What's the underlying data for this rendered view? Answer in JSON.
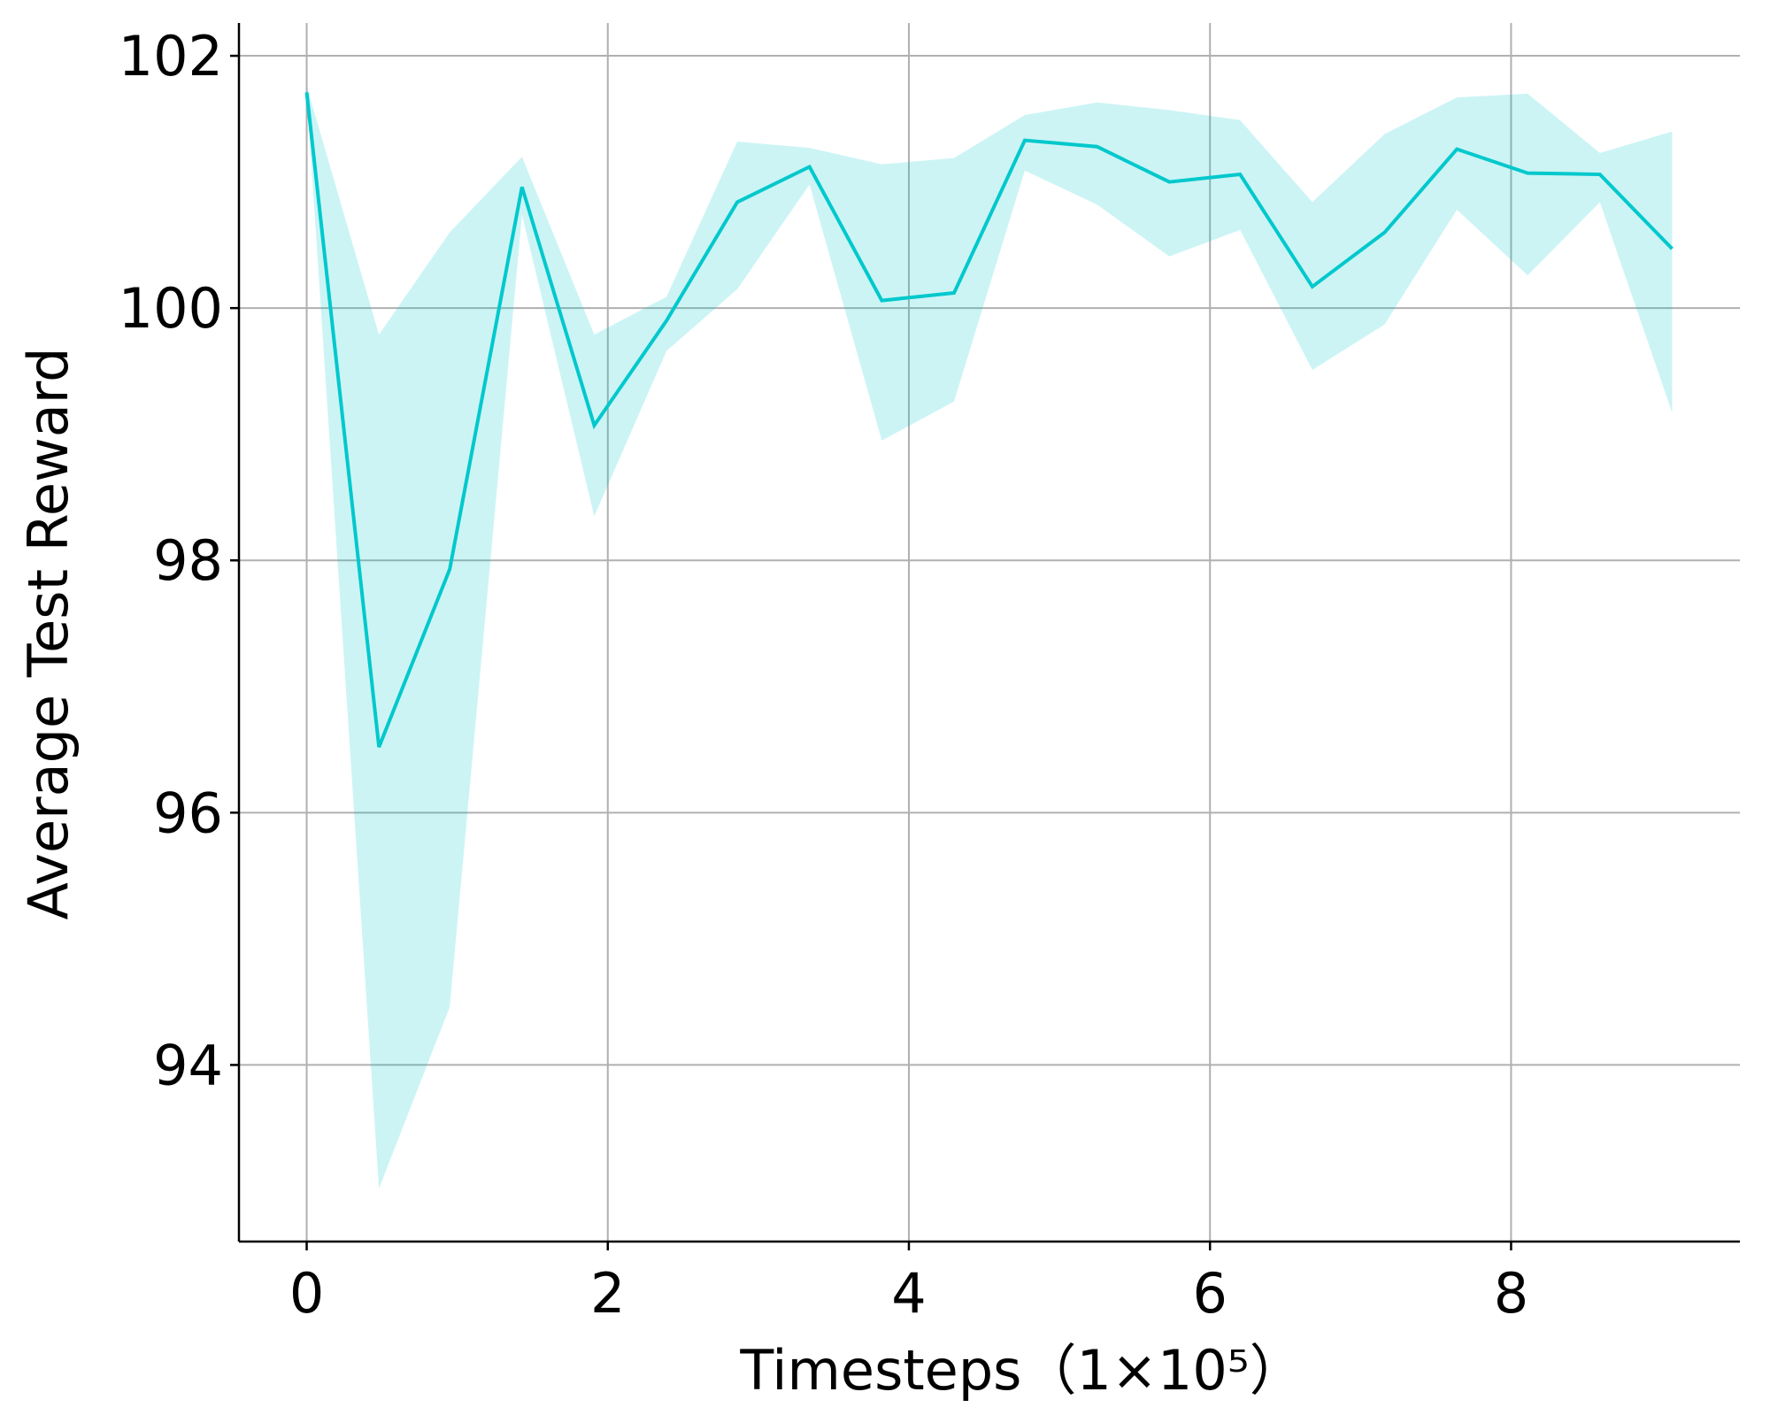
{
  "chart_data": {
    "type": "line",
    "xlabel": "Timesteps（1×10⁵）",
    "ylabel": "Average Test Reward",
    "x": [
      0,
      0.48,
      0.95,
      1.43,
      1.91,
      2.39,
      2.86,
      3.34,
      3.82,
      4.3,
      4.77,
      5.25,
      5.73,
      6.2,
      6.68,
      7.16,
      7.64,
      8.11,
      8.59,
      9.07
    ],
    "series": [
      {
        "color": "#00c8cc",
        "values": [
          101.71,
          96.52,
          97.93,
          100.96,
          99.07,
          99.9,
          100.84,
          101.12,
          100.06,
          100.12,
          101.33,
          101.28,
          101.0,
          101.06,
          100.17,
          100.6,
          101.26,
          101.07,
          101.06,
          100.47
        ],
        "upper": [
          101.76,
          99.79,
          100.6,
          101.2,
          99.79,
          100.09,
          101.32,
          101.27,
          101.14,
          101.19,
          101.53,
          101.63,
          101.57,
          101.49,
          100.84,
          101.38,
          101.67,
          101.7,
          101.23,
          101.4
        ],
        "lower": [
          101.7,
          93.02,
          94.46,
          100.74,
          98.35,
          99.66,
          100.15,
          100.98,
          98.95,
          99.26,
          101.09,
          100.82,
          100.41,
          100.62,
          99.51,
          99.87,
          100.78,
          100.26,
          100.84,
          99.17
        ]
      }
    ],
    "xlim": [
      -0.45,
      9.52
    ],
    "ylim": [
      92.6,
      102.26
    ],
    "xticks": [
      0,
      2,
      4,
      6,
      8
    ],
    "yticks": [
      94,
      96,
      98,
      100,
      102
    ],
    "grid": true
  }
}
